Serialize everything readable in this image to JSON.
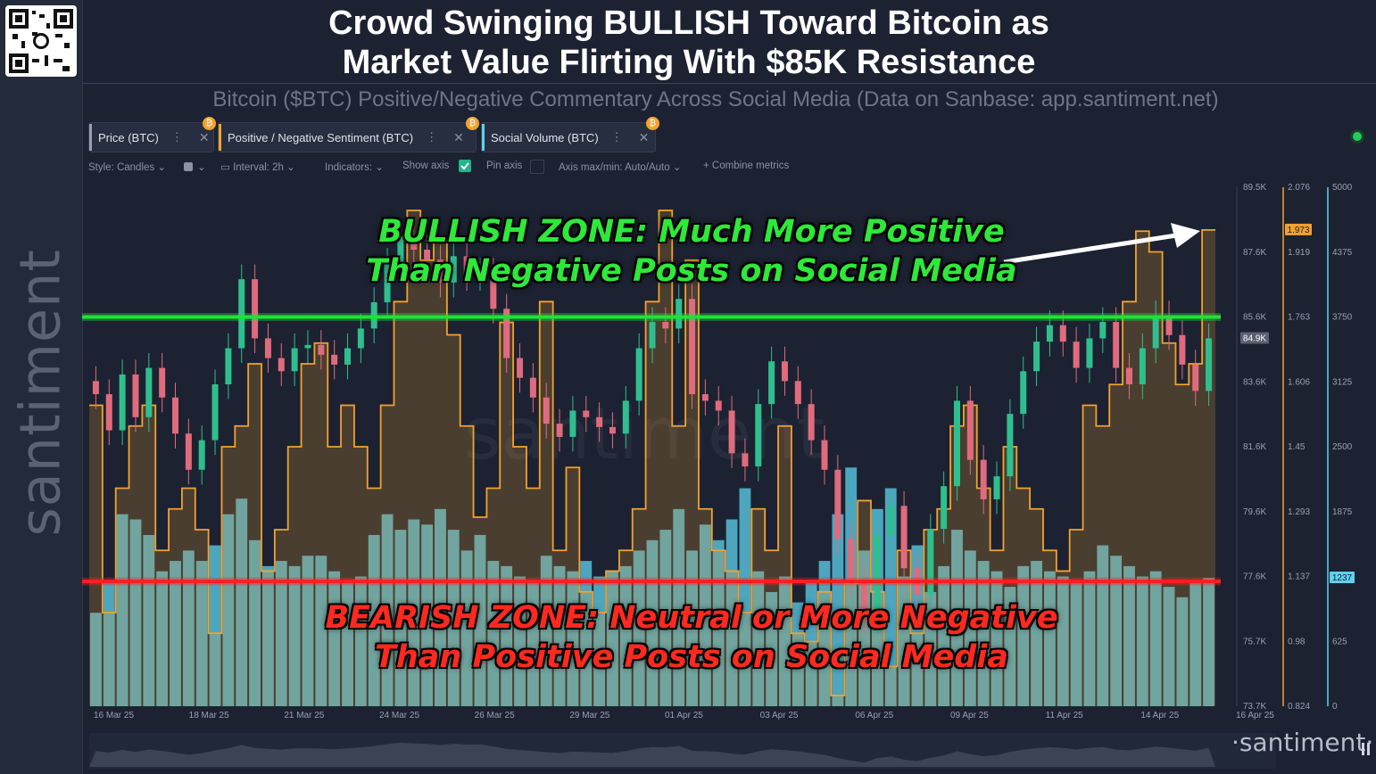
{
  "title_line1": "Crowd Swinging BULLISH Toward Bitcoin as",
  "title_line2": "Market Value Flirting With $85K Resistance",
  "subtitle": "Bitcoin ($BTC) Positive/Negative Commentary Across Social Media (Data on Sanbase: app.santiment.net)",
  "brand": "santiment",
  "bottom_brand": "·santiment·",
  "tabs": [
    {
      "label": "Price (BTC)",
      "color": "#9aa0ad"
    },
    {
      "label": "Positive / Negative Sentiment (BTC)",
      "color": "#f3a22f"
    },
    {
      "label": "Social Volume (BTC)",
      "color": "#5fd2ee"
    }
  ],
  "toolbar": {
    "style": "Style: Candles",
    "interval": "Interval: 2h",
    "indicators": "Indicators:",
    "show_axis": "Show axis",
    "pin_axis": "Pin axis",
    "axis_minmax": "Axis max/min: Auto/Auto",
    "combine": "Combine metrics"
  },
  "annotations": {
    "bullish_line1": "BULLISH ZONE: Much More Positive",
    "bullish_line2": "Than Negative Posts on Social Media",
    "bearish_line1": "BEARISH ZONE: Neutral or More Negative",
    "bearish_line2": "Than Positive Posts on Social Media"
  },
  "chart_data": {
    "type": "line",
    "x_labels": [
      "16 Mar 25",
      "18 Mar 25",
      "21 Mar 25",
      "24 Mar 25",
      "26 Mar 25",
      "29 Mar 25",
      "01 Apr 25",
      "03 Apr 25",
      "06 Apr 25",
      "09 Apr 25",
      "11 Apr 25",
      "14 Apr 25",
      "16 Apr 25"
    ],
    "price_axis": {
      "ticks": [
        "89.5K",
        "87.6K",
        "85.6K",
        "83.6K",
        "81.6K",
        "79.6K",
        "77.6K",
        "75.7K",
        "73.7K"
      ],
      "min": 73.7,
      "max": 89.5,
      "current_label": "84.9K"
    },
    "sentiment_axis": {
      "ticks": [
        "2.076",
        "1.919",
        "1.763",
        "1.606",
        "1.45",
        "1.293",
        "1.137",
        "0.98",
        "0.824"
      ],
      "min": 0.824,
      "max": 2.076,
      "current_label": "1.973"
    },
    "volume_axis": {
      "ticks": [
        "5000",
        "4375",
        "3750",
        "3125",
        "2500",
        "1875",
        "1250",
        "625",
        "0"
      ],
      "min": 0,
      "max": 5000,
      "current_label": "1237"
    },
    "series": [
      {
        "name": "Price (BTC)",
        "color": "#e06b7d",
        "up_color": "#2fbf8f",
        "values": [
          83.2,
          82.1,
          83.8,
          82.5,
          84.0,
          83.1,
          82.0,
          80.9,
          81.8,
          83.5,
          84.6,
          86.7,
          84.9,
          84.3,
          83.9,
          84.6,
          84.7,
          84.4,
          84.1,
          84.6,
          85.2,
          86.0,
          87.2,
          88.0,
          87.6,
          87.3,
          86.6,
          87.4,
          86.8,
          86.9,
          85.8,
          84.3,
          83.7,
          83.1,
          82.3,
          81.9,
          82.7,
          82.5,
          82.2,
          82.0,
          83.0,
          84.6,
          85.4,
          85.2,
          86.1,
          83.2,
          83.0,
          82.7,
          81.4,
          81.0,
          82.9,
          84.2,
          83.6,
          82.9,
          81.8,
          80.9,
          78.8,
          77.5,
          76.3,
          78.9,
          79.8,
          77.9,
          77.1,
          79.1,
          80.4,
          83.0,
          81.2,
          80.0,
          80.7,
          82.6,
          83.9,
          84.8,
          85.3,
          84.8,
          84.0,
          84.9,
          85.4,
          84.0,
          83.5,
          84.6,
          85.6,
          85.0,
          84.1,
          83.3,
          84.9
        ]
      },
      {
        "name": "Positive / Negative Sentiment (BTC)",
        "color": "#f3a22f",
        "values": [
          1.55,
          1.05,
          1.35,
          1.5,
          1.55,
          1.2,
          1.3,
          1.35,
          1.25,
          1.0,
          1.45,
          1.5,
          1.65,
          1.15,
          1.25,
          1.45,
          1.65,
          1.7,
          1.45,
          1.55,
          1.45,
          1.35,
          1.55,
          1.8,
          2.02,
          1.9,
          1.95,
          1.72,
          1.5,
          1.28,
          1.35,
          1.75,
          1.45,
          1.35,
          1.8,
          1.2,
          1.4,
          1.1,
          1.05,
          1.15,
          1.2,
          1.3,
          1.8,
          2.02,
          1.5,
          1.9,
          1.3,
          1.2,
          1.15,
          1.05,
          1.3,
          1.2,
          1.5,
          1.0,
          0.98,
          1.1,
          0.85,
          1.12,
          1.32,
          1.1,
          0.92,
          1.2,
          1.0,
          1.25,
          1.3,
          1.5,
          1.55,
          1.35,
          1.2,
          1.45,
          1.35,
          1.3,
          1.2,
          1.15,
          1.25,
          1.55,
          1.5,
          1.6,
          1.8,
          1.97,
          1.92,
          1.7,
          1.6,
          1.65,
          1.973
        ]
      },
      {
        "name": "Social Volume (BTC)",
        "color": "#5fd2ee",
        "values": [
          900,
          1200,
          1850,
          1800,
          1650,
          1300,
          1400,
          1500,
          1400,
          1550,
          1850,
          2000,
          1600,
          1350,
          1400,
          1350,
          1450,
          1450,
          1300,
          1200,
          1250,
          1650,
          1850,
          1700,
          1800,
          1750,
          1900,
          1700,
          1500,
          1650,
          1400,
          1350,
          1250,
          1200,
          1450,
          1350,
          1300,
          1400,
          1250,
          1300,
          1350,
          1500,
          1600,
          1700,
          1900,
          1500,
          1750,
          1600,
          1800,
          2100,
          1300,
          1100,
          1250,
          1000,
          1200,
          1400,
          1850,
          2300,
          1500,
          1900,
          2100,
          1250,
          1550,
          1100,
          1350,
          1700,
          1500,
          1400,
          1300,
          1150,
          1350,
          1400,
          1300,
          1250,
          1200,
          1300,
          1550,
          1450,
          1350,
          1250,
          1300,
          1150,
          1050,
          1200,
          1237
        ]
      }
    ],
    "reference_lines": [
      {
        "label": "BULLISH ZONE",
        "sentiment_level": 1.763,
        "color": "#23e03a"
      },
      {
        "label": "BEARISH ZONE",
        "sentiment_level": 1.125,
        "color": "#ff1e1e"
      }
    ]
  }
}
